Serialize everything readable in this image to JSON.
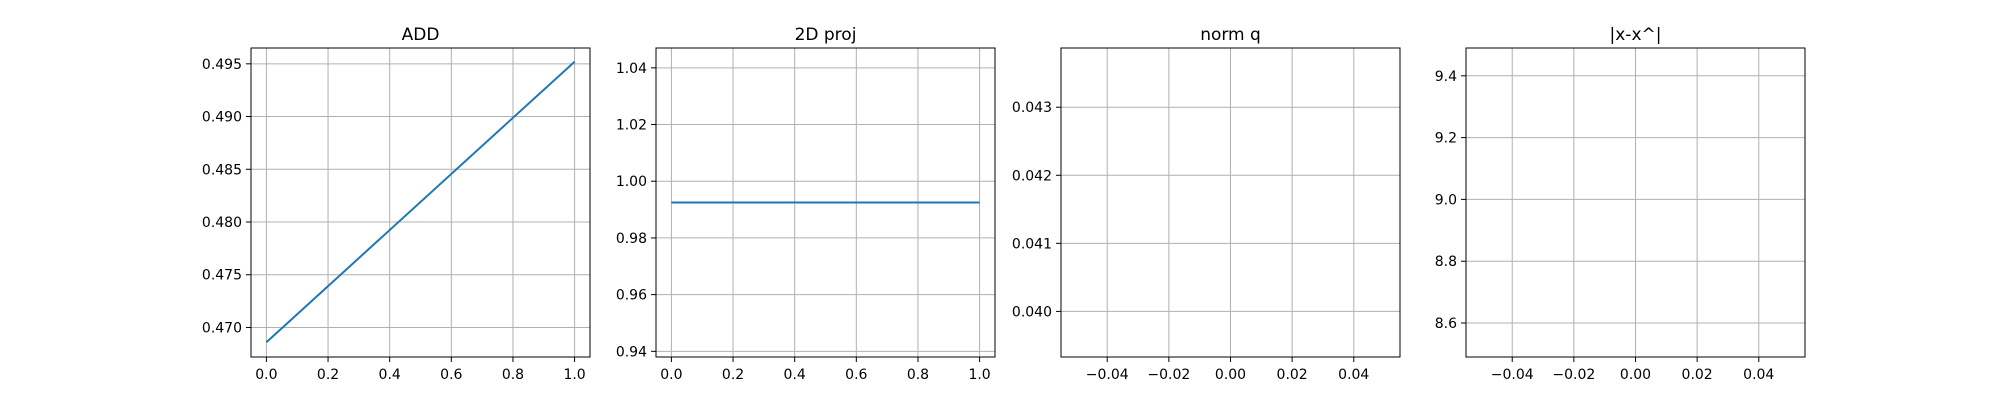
{
  "chart_data": [
    {
      "type": "line",
      "title": "ADD",
      "xlabel": "",
      "ylabel": "",
      "xlim": [
        -0.05,
        1.05
      ],
      "ylim": [
        0.4672,
        0.4965
      ],
      "xticks": [
        0.0,
        0.2,
        0.4,
        0.6,
        0.8,
        1.0
      ],
      "xtick_labels": [
        "0.0",
        "0.2",
        "0.4",
        "0.6",
        "0.8",
        "1.0"
      ],
      "yticks": [
        0.47,
        0.475,
        0.48,
        0.485,
        0.49,
        0.495
      ],
      "ytick_labels": [
        "0.470",
        "0.475",
        "0.480",
        "0.485",
        "0.490",
        "0.495"
      ],
      "grid": true,
      "series": [
        {
          "x": [
            0.0,
            1.0
          ],
          "y": [
            0.4686,
            0.4952
          ]
        }
      ]
    },
    {
      "type": "line",
      "title": "2D proj",
      "xlabel": "",
      "ylabel": "",
      "xlim": [
        -0.05,
        1.05
      ],
      "ylim": [
        0.938,
        1.047
      ],
      "xticks": [
        0.0,
        0.2,
        0.4,
        0.6,
        0.8,
        1.0
      ],
      "xtick_labels": [
        "0.0",
        "0.2",
        "0.4",
        "0.6",
        "0.8",
        "1.0"
      ],
      "yticks": [
        0.94,
        0.96,
        0.98,
        1.0,
        1.02,
        1.04
      ],
      "ytick_labels": [
        "0.94",
        "0.96",
        "0.98",
        "1.00",
        "1.02",
        "1.04"
      ],
      "grid": true,
      "series": [
        {
          "x": [
            0.0,
            1.0
          ],
          "y": [
            0.9925,
            0.9925
          ]
        }
      ]
    },
    {
      "type": "line",
      "title": "norm q",
      "xlabel": "",
      "ylabel": "",
      "xlim": [
        -0.055,
        0.055
      ],
      "ylim": [
        0.03933,
        0.04387
      ],
      "xticks": [
        -0.04,
        -0.02,
        0.0,
        0.02,
        0.04
      ],
      "xtick_labels": [
        "−0.04",
        "−0.02",
        "0.00",
        "0.02",
        "0.04"
      ],
      "yticks": [
        0.04,
        0.041,
        0.042,
        0.043
      ],
      "ytick_labels": [
        "0.040",
        "0.041",
        "0.042",
        "0.043"
      ],
      "grid": true,
      "series": []
    },
    {
      "type": "line",
      "title": "|x-x^|",
      "xlabel": "",
      "ylabel": "",
      "xlim": [
        -0.055,
        0.055
      ],
      "ylim": [
        8.49,
        9.49
      ],
      "xticks": [
        -0.04,
        -0.02,
        0.0,
        0.02,
        0.04
      ],
      "xtick_labels": [
        "−0.04",
        "−0.02",
        "0.00",
        "0.02",
        "0.04"
      ],
      "yticks": [
        8.6,
        8.8,
        9.0,
        9.2,
        9.4
      ],
      "ytick_labels": [
        "8.6",
        "8.8",
        "9.0",
        "9.2",
        "9.4"
      ],
      "grid": true,
      "series": []
    }
  ],
  "colors": {
    "line": "#1f77b4",
    "grid": "#b0b0b0",
    "axes": "#000000"
  }
}
